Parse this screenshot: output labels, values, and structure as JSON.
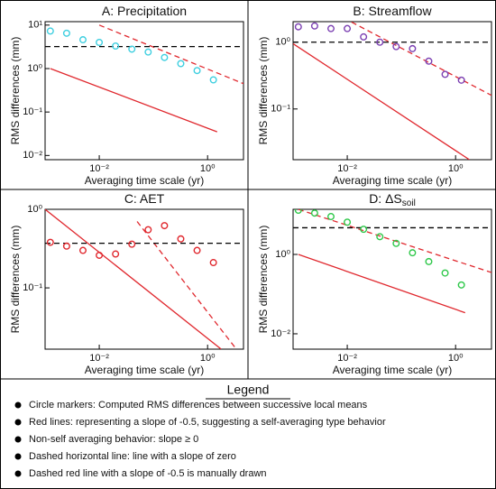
{
  "chart_data": [
    {
      "type": "scatter",
      "title": "A: Precipitation",
      "x_label": "Averaging time scale (yr)",
      "y_label": "RMS differences (mm)",
      "log_x": true,
      "log_y": true,
      "xlim": [
        0.001,
        4.6
      ],
      "ylim": [
        0.008,
        12
      ],
      "xticks": [
        {
          "value": 0.01,
          "label": "10⁻²"
        },
        {
          "value": 1,
          "label": "10⁰"
        }
      ],
      "yticks": [
        {
          "value": 10,
          "label": "10¹"
        },
        {
          "value": 1,
          "label": "10⁰"
        },
        {
          "value": 0.1,
          "label": "10⁻¹"
        },
        {
          "value": 0.01,
          "label": "10⁻²"
        }
      ],
      "x": [
        0.00125,
        0.0025,
        0.005,
        0.01,
        0.02,
        0.04,
        0.08,
        0.16,
        0.32,
        0.64,
        1.28
      ],
      "series": [
        {
          "color": "#3fcfe0",
          "values": [
            7.3,
            6.5,
            4.6,
            4,
            3.3,
            2.8,
            2.4,
            1.8,
            1.3,
            0.9,
            0.55
          ]
        }
      ],
      "lines": [
        {
          "style": "solid",
          "color": "#e0282e",
          "x": [
            0.00125,
            1.5
          ],
          "y": [
            1,
            0.035
          ]
        },
        {
          "style": "dashed",
          "color": "#e0282e",
          "x": [
            0.01,
            4.6
          ],
          "y": [
            10,
            0.45
          ]
        },
        {
          "style": "dashed",
          "color": "#000000",
          "x": [
            0.001,
            4.6
          ],
          "y": [
            3.2,
            3.2
          ]
        }
      ]
    },
    {
      "type": "scatter",
      "title": "B: Streamflow",
      "x_label": "Averaging time scale (yr)",
      "y_label": "RMS differences (mm)",
      "log_x": true,
      "log_y": true,
      "xlim": [
        0.001,
        4.6
      ],
      "ylim": [
        0.0174,
        2.03
      ],
      "xticks": [
        {
          "value": 0.01,
          "label": "10⁻²"
        },
        {
          "value": 1,
          "label": "10⁰"
        }
      ],
      "yticks": [
        {
          "value": 1,
          "label": "10⁰"
        },
        {
          "value": 0.1,
          "label": "10⁻¹"
        }
      ],
      "x": [
        0.00125,
        0.0025,
        0.005,
        0.01,
        0.02,
        0.04,
        0.08,
        0.16,
        0.32,
        0.64,
        1.28
      ],
      "series": [
        {
          "color": "#7b3fb2",
          "values": [
            1.7,
            1.75,
            1.6,
            1.6,
            1.2,
            1,
            0.86,
            0.8,
            0.52,
            0.33,
            0.27
          ]
        }
      ],
      "lines": [
        {
          "style": "solid",
          "color": "#e0282e",
          "x": [
            0.001,
            1.8
          ],
          "y": [
            0.95,
            0.0174
          ]
        },
        {
          "style": "dashed",
          "color": "#e0282e",
          "x": [
            0.012,
            4.6
          ],
          "y": [
            2.0,
            0.16
          ]
        },
        {
          "style": "dashed",
          "color": "#000000",
          "x": [
            0.001,
            4.6
          ],
          "y": [
            1,
            1
          ]
        }
      ]
    },
    {
      "type": "scatter",
      "title": "C: AET",
      "x_label": "Averaging time scale (yr)",
      "y_label": "RMS differences (mm)",
      "log_x": true,
      "log_y": true,
      "xlim": [
        0.001,
        4.6
      ],
      "ylim": [
        0.0166,
        1
      ],
      "xticks": [
        {
          "value": 0.01,
          "label": "10⁻²"
        },
        {
          "value": 1,
          "label": "10⁰"
        }
      ],
      "yticks": [
        {
          "value": 1,
          "label": "10⁰"
        },
        {
          "value": 0.1,
          "label": "10⁻¹"
        }
      ],
      "x": [
        0.00125,
        0.0025,
        0.005,
        0.01,
        0.02,
        0.04,
        0.08,
        0.16,
        0.32,
        0.64,
        1.28
      ],
      "series": [
        {
          "color": "#e0282e",
          "values": [
            0.38,
            0.34,
            0.3,
            0.26,
            0.27,
            0.36,
            0.55,
            0.62,
            0.42,
            0.3,
            0.21
          ]
        }
      ],
      "lines": [
        {
          "style": "solid",
          "color": "#e0282e",
          "x": [
            0.001,
            1.78
          ],
          "y": [
            1,
            0.0166
          ]
        },
        {
          "style": "dashed",
          "color": "#e0282e",
          "x": [
            0.05,
            3.4
          ],
          "y": [
            0.7,
            0.0166
          ]
        },
        {
          "style": "dashed",
          "color": "#000000",
          "x": [
            0.001,
            4.6
          ],
          "y": [
            0.37,
            0.37
          ]
        }
      ]
    },
    {
      "type": "scatter",
      "title": "D: ΔS",
      "title_sub": "soil",
      "x_label": "Averaging time scale (yr)",
      "y_label": "RMS differences (mm)",
      "log_x": true,
      "log_y": true,
      "xlim": [
        0.001,
        4.6
      ],
      "ylim": [
        0.0041,
        13.7
      ],
      "xticks": [
        {
          "value": 0.01,
          "label": "10⁻²"
        },
        {
          "value": 1,
          "label": "10⁰"
        }
      ],
      "yticks": [
        {
          "value": 1,
          "label": "10⁰"
        },
        {
          "value": 0.01,
          "label": "10⁻²"
        }
      ],
      "x": [
        0.00125,
        0.0025,
        0.005,
        0.01,
        0.02,
        0.04,
        0.08,
        0.16,
        0.32,
        0.64,
        1.28
      ],
      "series": [
        {
          "color": "#2fc84a",
          "values": [
            13,
            11,
            9,
            6.5,
            4.3,
            2.8,
            1.9,
            1.1,
            0.66,
            0.34,
            0.17
          ]
        }
      ],
      "lines": [
        {
          "style": "solid",
          "color": "#e0282e",
          "x": [
            0.00125,
            1.5
          ],
          "y": [
            1,
            0.034
          ]
        },
        {
          "style": "dashed",
          "color": "#e0282e",
          "x": [
            0.00125,
            4.6
          ],
          "y": [
            13.7,
            0.35
          ]
        },
        {
          "style": "dashed",
          "color": "#000000",
          "x": [
            0.001,
            4.6
          ],
          "y": [
            4.7,
            4.7
          ]
        }
      ]
    }
  ],
  "legend": {
    "title": "Legend",
    "items": [
      "Circle markers: Computed RMS differences between successive local means",
      "Red lines: representing a slope of -0.5, suggesting a self-averaging type behavior",
      "Non-self averaging behavior: slope ≥ 0",
      "Dashed horizontal line: line with a slope of zero",
      "Dashed red line with a slope of -0.5 is manually drawn"
    ]
  }
}
